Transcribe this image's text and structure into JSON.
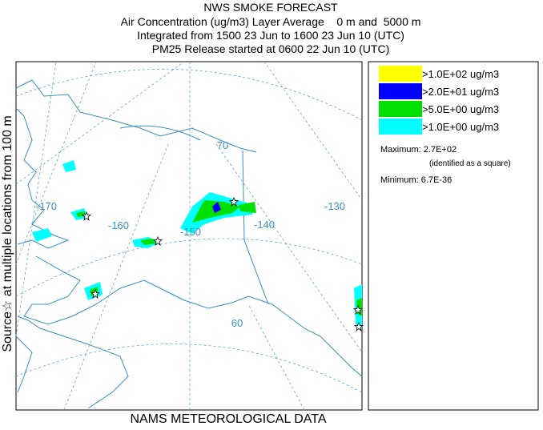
{
  "header": {
    "title": "NWS SMOKE FORECAST",
    "lines": [
      "Air Concentration (ug/m3) Layer Average    0 m and  5000 m",
      "Integrated from 1500 23 Jun to 1600 23 Jun 10 (UTC)",
      "PM25 Release started at 0600 22 Jun 10 (UTC)"
    ]
  },
  "side_label": "Source☆ at multiple locations from 100 m",
  "footer": "NAMS METEOROLOGICAL DATA",
  "map": {
    "labels": [
      "-170",
      "-160",
      "-150",
      "-140",
      "-130",
      "70",
      "60"
    ]
  },
  "legend": {
    "entries": [
      {
        "label": ">1.0E+02 ug/m3",
        "color": "#ffff00"
      },
      {
        "label": ">2.0E+01 ug/m3",
        "color": "#0000ff"
      },
      {
        "label": ">5.0E+00 ug/m3",
        "color": "#00e000"
      },
      {
        "label": ">1.0E+00 ug/m3",
        "color": "#00ffff"
      }
    ],
    "maximum": "Maximum: 2.7E+02",
    "maximum_note": "(identified as a square)",
    "minimum": "Minimum: 6.7E-36"
  }
}
